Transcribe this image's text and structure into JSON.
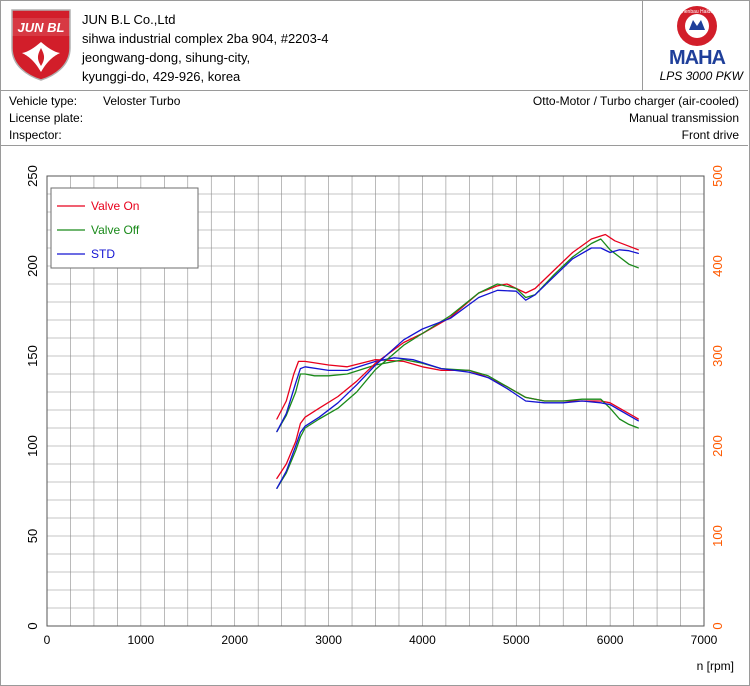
{
  "company": {
    "logo_text": "JUN BL",
    "name": "JUN B.L Co.,Ltd",
    "address_lines": [
      "sihwa industrial complex 2ba 904, #2203-4",
      "jeongwang-dong, sihung-city,",
      "kyunggi-do, 429-926, korea"
    ]
  },
  "maha": {
    "logo_text": "MAHA",
    "ring_text": "Maschinenbau Haldenwang",
    "model": "LPS 3000 PKW"
  },
  "vehicle": {
    "type_label": "Vehicle type:",
    "type_value": "Veloster Turbo",
    "plate_label": "License plate:",
    "plate_value": "",
    "inspector_label": "Inspector:",
    "inspector_value": "",
    "engine": "Otto-Motor / Turbo charger (air-cooled)",
    "transmission": "Manual transmission",
    "drive": "Front drive"
  },
  "colors": {
    "valve_on": "#e8001c",
    "valve_off": "#1a8a1a",
    "std": "#1414d2",
    "right_axis": "#ff5a00",
    "logo_red": "#d21e2a",
    "maha_blue": "#1f3f9a"
  },
  "chart_data": {
    "type": "line",
    "xlabel": "n [rpm]",
    "xlim": [
      0,
      7000
    ],
    "x_ticks": [
      0,
      1000,
      2000,
      3000,
      4000,
      5000,
      6000,
      7000
    ],
    "ylim_left": [
      0,
      250
    ],
    "y_ticks_left": [
      0,
      50,
      100,
      150,
      200,
      250
    ],
    "ylim_right": [
      0,
      500
    ],
    "y_ticks_right": [
      0,
      100,
      200,
      300,
      400,
      500
    ],
    "grid": true,
    "legend_position": "top-left",
    "series": [
      {
        "name": "Valve On",
        "color_key": "valve_on",
        "axis": "left",
        "x": [
          2450,
          2550,
          2630,
          2680,
          2750,
          3000,
          3200,
          3500,
          3800,
          4000,
          4200,
          4500,
          4700,
          4900,
          5100,
          5300,
          5500,
          5700,
          5900,
          6000,
          6100,
          6200,
          6300
        ],
        "y": [
          115,
          125,
          140,
          147,
          147,
          145,
          144,
          148,
          147,
          144,
          142,
          142,
          138,
          133,
          127,
          125,
          125,
          125,
          125,
          124,
          121,
          118,
          115
        ]
      },
      {
        "name": "Valve Off",
        "color_key": "valve_off",
        "axis": "left",
        "x": [
          2450,
          2550,
          2650,
          2700,
          2750,
          2850,
          3000,
          3200,
          3500,
          3800,
          4000,
          4200,
          4500,
          4700,
          4900,
          5100,
          5300,
          5500,
          5700,
          5900,
          6000,
          6100,
          6200,
          6300
        ],
        "y": [
          108,
          117,
          130,
          140,
          140,
          139,
          139,
          140,
          145,
          148,
          146,
          143,
          142,
          139,
          133,
          127,
          125,
          125,
          126,
          126,
          121,
          115,
          112,
          110
        ]
      },
      {
        "name": "STD",
        "color_key": "std",
        "axis": "left",
        "x": [
          2450,
          2550,
          2650,
          2700,
          2750,
          3000,
          3200,
          3500,
          3700,
          3900,
          4200,
          4500,
          4700,
          4900,
          5100,
          5300,
          5500,
          5700,
          5900,
          6000,
          6100,
          6200,
          6300
        ],
        "y": [
          108,
          118,
          135,
          143,
          144,
          142,
          142,
          147,
          149,
          148,
          143,
          141,
          138,
          132,
          125,
          124,
          124,
          125,
          124,
          123,
          120,
          117,
          114
        ]
      },
      {
        "name": "Valve On",
        "color_key": "valve_on",
        "axis": "right",
        "x": [
          2450,
          2550,
          2650,
          2700,
          2750,
          2900,
          3100,
          3300,
          3500,
          3800,
          4000,
          4300,
          4600,
          4800,
          4900,
          5000,
          5100,
          5200,
          5400,
          5600,
          5800,
          5950,
          6050,
          6200,
          6300
        ],
        "y": [
          164,
          180,
          205,
          225,
          232,
          242,
          255,
          272,
          292,
          315,
          325,
          343,
          370,
          378,
          380,
          375,
          370,
          375,
          395,
          415,
          430,
          435,
          428,
          422,
          418
        ]
      },
      {
        "name": "Valve Off",
        "color_key": "valve_off",
        "axis": "right",
        "x": [
          2450,
          2550,
          2650,
          2700,
          2750,
          2900,
          3100,
          3300,
          3500,
          3800,
          4000,
          4300,
          4600,
          4800,
          5000,
          5100,
          5200,
          5400,
          5600,
          5800,
          5900,
          6000,
          6100,
          6200,
          6300
        ],
        "y": [
          153,
          170,
          195,
          210,
          220,
          230,
          242,
          260,
          285,
          312,
          325,
          345,
          370,
          380,
          375,
          365,
          368,
          390,
          410,
          425,
          430,
          418,
          410,
          402,
          398
        ]
      },
      {
        "name": "STD",
        "color_key": "std",
        "axis": "right",
        "x": [
          2450,
          2550,
          2650,
          2700,
          2750,
          2900,
          3100,
          3300,
          3500,
          3800,
          4000,
          4300,
          4600,
          4800,
          5000,
          5100,
          5200,
          5400,
          5600,
          5800,
          5900,
          6000,
          6100,
          6200,
          6300
        ],
        "y": [
          153,
          172,
          200,
          215,
          222,
          232,
          248,
          268,
          290,
          318,
          330,
          342,
          365,
          373,
          372,
          362,
          368,
          388,
          408,
          420,
          420,
          415,
          418,
          417,
          414
        ]
      }
    ]
  }
}
